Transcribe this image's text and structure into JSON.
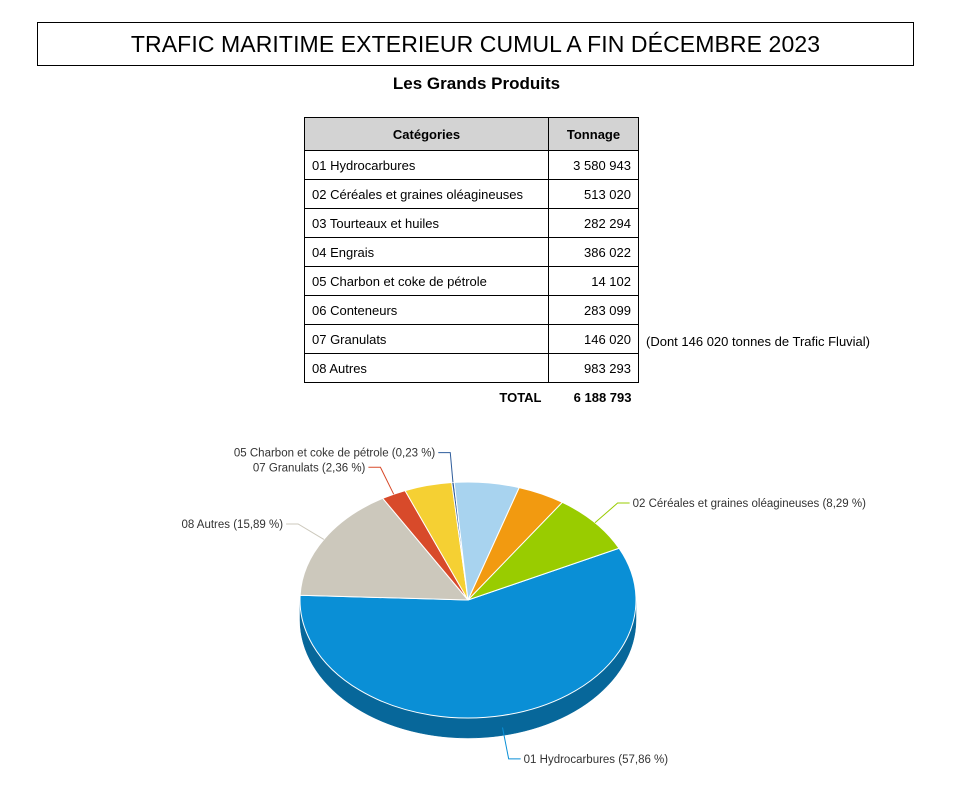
{
  "header": {
    "title": "TRAFIC MARITIME EXTERIEUR CUMUL A FIN DÉCEMBRE 2023",
    "subtitle": "Les Grands Produits"
  },
  "table": {
    "col_category": "Catégories",
    "col_tonnage": "Tonnage",
    "rows": [
      {
        "category": "01 Hydrocarbures",
        "tonnage": "3 580 943"
      },
      {
        "category": "02 Céréales et graines oléagineuses",
        "tonnage": "513 020"
      },
      {
        "category": "03 Tourteaux et huiles",
        "tonnage": "282 294"
      },
      {
        "category": "04 Engrais",
        "tonnage": "386 022"
      },
      {
        "category": "05 Charbon et coke de pétrole",
        "tonnage": "14 102"
      },
      {
        "category": "06 Conteneurs",
        "tonnage": "283 099"
      },
      {
        "category": "07 Granulats",
        "tonnage": "146 020"
      },
      {
        "category": "08 Autres",
        "tonnage": "983 293"
      }
    ],
    "total_label": "TOTAL",
    "total_value": "6 188 793",
    "note": "(Dont 146 020 tonnes de Trafic Fluvial)"
  },
  "chart_data": {
    "type": "pie",
    "title": "",
    "slices": [
      {
        "name": "01 Hydrocarbures",
        "value": 57.86,
        "color": "#0a8fd6",
        "label": "01 Hydrocarbures (57,86 %)"
      },
      {
        "name": "08 Autres",
        "value": 15.89,
        "color": "#ccc8bc",
        "label": "08 Autres (15,89 %)"
      },
      {
        "name": "07 Granulats",
        "value": 2.36,
        "color": "#d84a2a",
        "label": "07 Granulats (2,36 %)"
      },
      {
        "name": "06 Conteneurs",
        "value": 4.57,
        "color": "#f5d033",
        "label": ""
      },
      {
        "name": "05 Charbon et coke de pétrole",
        "value": 0.23,
        "color": "#2f5d9c",
        "label": "05 Charbon et coke de pétrole (0,23 %)"
      },
      {
        "name": "04 Engrais",
        "value": 6.24,
        "color": "#a8d3ef",
        "label": ""
      },
      {
        "name": "03 Tourteaux et huiles",
        "value": 4.56,
        "color": "#f29a10",
        "label": ""
      },
      {
        "name": "02 Céréales et graines oléagineuses",
        "value": 8.29,
        "color": "#99cc00",
        "label": "02 Céréales et graines oléagineuses (8,29 %)"
      }
    ]
  }
}
